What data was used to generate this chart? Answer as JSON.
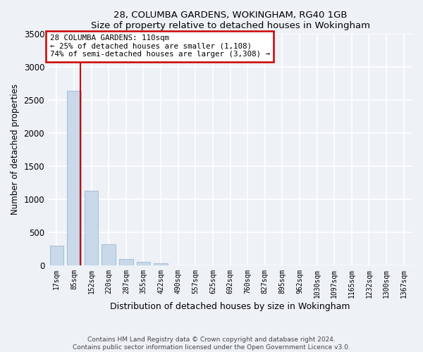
{
  "title": "28, COLUMBA GARDENS, WOKINGHAM, RG40 1GB",
  "subtitle": "Size of property relative to detached houses in Wokingham",
  "xlabel": "Distribution of detached houses by size in Wokingham",
  "ylabel": "Number of detached properties",
  "categories": [
    "17sqm",
    "85sqm",
    "152sqm",
    "220sqm",
    "287sqm",
    "355sqm",
    "422sqm",
    "490sqm",
    "557sqm",
    "625sqm",
    "692sqm",
    "760sqm",
    "827sqm",
    "895sqm",
    "962sqm",
    "1030sqm",
    "1097sqm",
    "1165sqm",
    "1232sqm",
    "1300sqm",
    "1367sqm"
  ],
  "values": [
    290,
    2640,
    1130,
    310,
    90,
    45,
    30,
    0,
    0,
    0,
    0,
    0,
    0,
    0,
    0,
    0,
    0,
    0,
    0,
    0,
    0
  ],
  "bar_color": "#c9d9ea",
  "bar_edge_color": "#a8c0d6",
  "annotation_title": "28 COLUMBA GARDENS: 110sqm",
  "annotation_line1": "← 25% of detached houses are smaller (1,108)",
  "annotation_line2": "74% of semi-detached houses are larger (3,308) →",
  "annotation_box_color": "#cc0000",
  "ylim": [
    0,
    3500
  ],
  "yticks": [
    0,
    500,
    1000,
    1500,
    2000,
    2500,
    3000,
    3500
  ],
  "footnote1": "Contains HM Land Registry data © Crown copyright and database right 2024.",
  "footnote2": "Contains public sector information licensed under the Open Government Licence v3.0.",
  "background_color": "#eef2f7",
  "plot_background": "#eef2f7",
  "grid_color": "#ffffff"
}
